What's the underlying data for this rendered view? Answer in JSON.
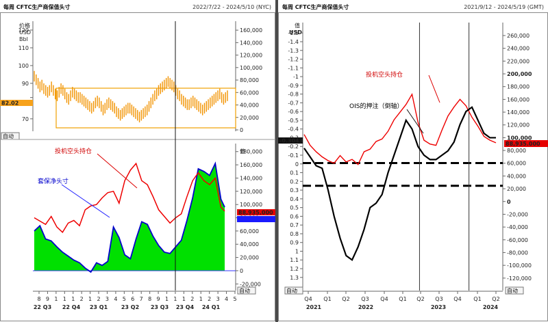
{
  "left": {
    "title": "每周 CFTC生产商保值头寸",
    "date_range": "2022/7/22 - 2024/5/10 (NYC)",
    "price_unit_lines": [
      "价格",
      "USD",
      "Bbl"
    ],
    "button_label": "自动",
    "value_label": "值",
    "last_price_badge": "82.02",
    "badge_red": "88,935.000",
    "badge_blue": "",
    "annotations": {
      "spec": "投机空头持仓",
      "hedge": "套保净头寸"
    },
    "x_tick_numbers": [
      "8",
      "9",
      "1",
      "1",
      "1",
      "2",
      "1",
      "2",
      "3",
      "4",
      "5",
      "6",
      "7",
      "8",
      "9",
      "1",
      "1",
      "1",
      "2",
      "1",
      "2",
      "3",
      "4",
      "5"
    ],
    "x_quarters": [
      "22 Q3",
      "22 Q4",
      "23 Q1",
      "23 Q2",
      "23 Q3",
      "23 Q4",
      "24 Q1"
    ]
  },
  "right": {
    "title": "每周 CFTC生产商保值头寸",
    "date_range": "2021/9/12 - 2024/5/19 (GMT)",
    "value_label": "值",
    "usd_label": "USD",
    "button_label": "自动",
    "left_badge": "-0.3043",
    "right_badge": "88,935.000",
    "annotations": {
      "spec": "投机空头持仓",
      "ois": "OIS的押注（倒轴）"
    },
    "x_quarters": [
      "Q4",
      "Q1",
      "Q2",
      "Q3",
      "Q4",
      "Q1",
      "Q2",
      "Q3",
      "Q4",
      "Q1",
      "Q2"
    ],
    "x_years": [
      "2021",
      "2022",
      "2023",
      "2024"
    ]
  },
  "chart_data": [
    {
      "type": "bar",
      "name": "price",
      "left_axis": {
        "ticks": [
          "120",
          "110",
          "100",
          "90",
          "82",
          "70"
        ],
        "range": [
          63,
          125
        ]
      },
      "right_axis": {
        "ticks": [
          "160,000",
          "140,000",
          "120,000",
          "100,000",
          "80,000",
          "60,000",
          "40,000",
          "20,000",
          "0"
        ],
        "range": [
          0,
          170000
        ]
      },
      "values": [
        94,
        92,
        90,
        88,
        89,
        87,
        86,
        85,
        86,
        88,
        86,
        84,
        83,
        85,
        87,
        86,
        84,
        82,
        81,
        83,
        85,
        84,
        83,
        82,
        82,
        81,
        80,
        79,
        78,
        77,
        76,
        77,
        79,
        80,
        79,
        77,
        75,
        76,
        78,
        79,
        78,
        77,
        76,
        74,
        73,
        72,
        73,
        74,
        75,
        76,
        76,
        75,
        74,
        73,
        72,
        71,
        72,
        73,
        74,
        75,
        77,
        79,
        81,
        83,
        84,
        86,
        87,
        88,
        89,
        90,
        91,
        90,
        89,
        88,
        86,
        84,
        83,
        81,
        80,
        79,
        78,
        78,
        79,
        80,
        79,
        78,
        77,
        76,
        75,
        76,
        77,
        78,
        79,
        80,
        81,
        82,
        83,
        84,
        82,
        81,
        82,
        83
      ]
    },
    {
      "type": "area",
      "name": "positions",
      "axis": {
        "ticks": [
          "180,000",
          "160,000",
          "140,000",
          "120,000",
          "100,000",
          "80,000",
          "60,000",
          "40,000",
          "20,000",
          "0",
          "-20,000"
        ],
        "range": [
          -30000,
          188000
        ]
      },
      "x": [
        0,
        3,
        6,
        9,
        12,
        15,
        18,
        21,
        24,
        27,
        30,
        33,
        36,
        39,
        42,
        45,
        48,
        51,
        54,
        57,
        60,
        63,
        66,
        69,
        72,
        75,
        78,
        81,
        84,
        87,
        90,
        93,
        96,
        99,
        101
      ],
      "hedge": [
        60000,
        68000,
        48000,
        45000,
        36000,
        28000,
        22000,
        16000,
        12000,
        4000,
        -2000,
        12000,
        8000,
        14000,
        66000,
        50000,
        24000,
        18000,
        48000,
        74000,
        70000,
        52000,
        38000,
        28000,
        26000,
        36000,
        46000,
        76000,
        110000,
        154000,
        150000,
        144000,
        162000,
        108000,
        96000
      ],
      "spec": [
        80000,
        75000,
        70000,
        82000,
        66000,
        58000,
        72000,
        76000,
        68000,
        92000,
        98000,
        100000,
        110000,
        118000,
        120000,
        102000,
        136000,
        152000,
        162000,
        136000,
        130000,
        112000,
        92000,
        82000,
        72000,
        80000,
        86000,
        112000,
        136000,
        148000,
        136000,
        130000,
        140000,
        96000,
        90000
      ],
      "vline_x": 75
    },
    {
      "type": "line",
      "name": "ois_vs_spec",
      "left_axis": {
        "ticks": [
          "-1.5",
          "-1.4",
          "-1.3",
          "-1.2",
          "-1.1",
          "-1",
          "-0.9",
          "-0.8",
          "-0.7",
          "-0.6",
          "-0.5",
          "-0.4",
          "-0.3",
          "-0.2",
          "-0.1",
          "0",
          "0.1",
          "0.2",
          "0.3",
          "0.4",
          "0.5",
          "0.6",
          "0.7",
          "0.8",
          "0.9",
          "1",
          "1.1",
          "1.2",
          "1.3"
        ],
        "range": [
          -1.58,
          1.38
        ]
      },
      "right_axis": {
        "ticks": [
          "260,000",
          "240,000",
          "220,000",
          "200,000",
          "180,000",
          "160,000",
          "140,000",
          "120,000",
          "100,000",
          "80,000",
          "60,000",
          "40,000",
          "20,000",
          "0",
          "-20,000",
          "-40,000",
          "-60,000",
          "-80,000",
          "-100,000",
          "-120,000"
        ],
        "range": [
          -132000,
          275000
        ]
      },
      "x": [
        0,
        4,
        8,
        12,
        16,
        20,
        24,
        28,
        32,
        36,
        40,
        44,
        48,
        52,
        56,
        60,
        64,
        68,
        72,
        76,
        80,
        84,
        88,
        92,
        96,
        100,
        104,
        108,
        112,
        116,
        120,
        124,
        128
      ],
      "ois": [
        -0.18,
        -0.08,
        0.02,
        0.05,
        0.3,
        0.6,
        0.85,
        1.05,
        1.1,
        0.95,
        0.75,
        0.5,
        0.45,
        0.35,
        0.1,
        -0.1,
        -0.3,
        -0.5,
        -0.4,
        -0.2,
        -0.1,
        -0.05,
        -0.05,
        -0.1,
        -0.15,
        -0.25,
        -0.45,
        -0.6,
        -0.65,
        -0.5,
        -0.35,
        -0.3,
        -0.3
      ],
      "spec": [
        105000,
        88000,
        78000,
        70000,
        64000,
        60000,
        72000,
        62000,
        66000,
        58000,
        78000,
        82000,
        94000,
        98000,
        110000,
        128000,
        140000,
        152000,
        168000,
        124000,
        96000,
        90000,
        88000,
        112000,
        134000,
        148000,
        160000,
        150000,
        132000,
        118000,
        102000,
        96000,
        92000
      ],
      "hline_values": [
        -0.01,
        0.25
      ],
      "vline_x": [
        77,
        110
      ]
    }
  ]
}
